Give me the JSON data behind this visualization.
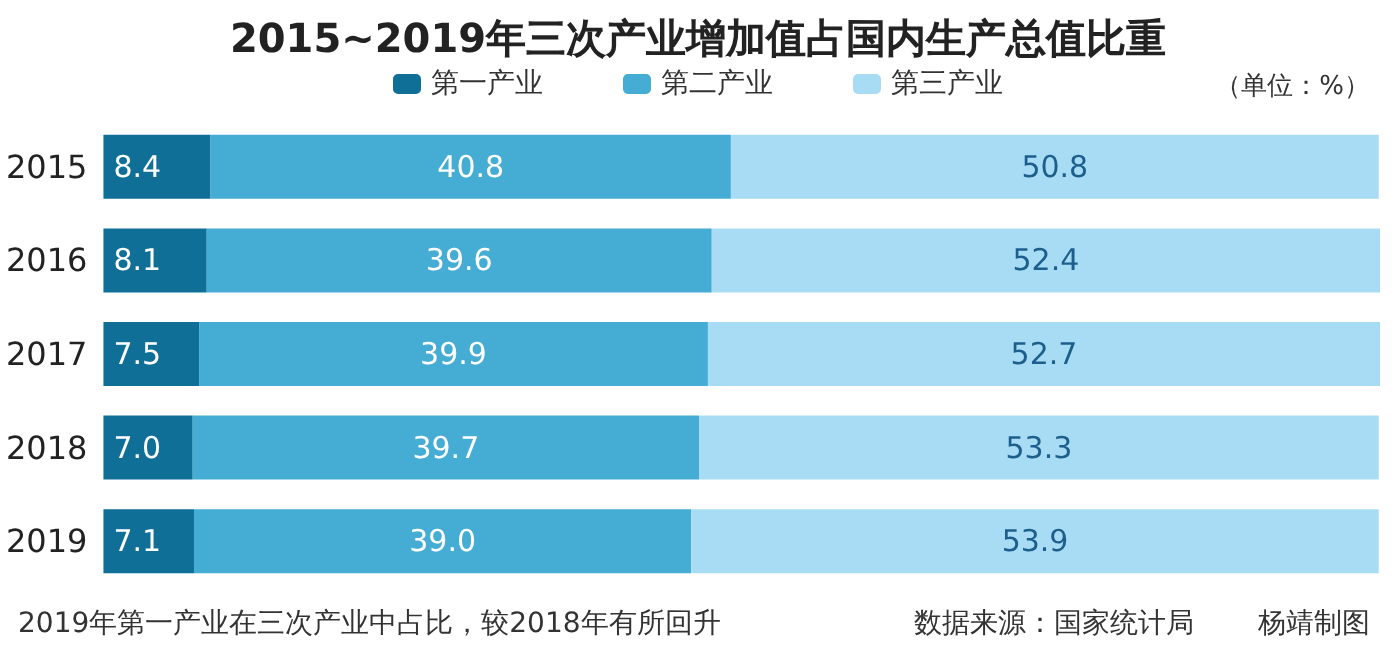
{
  "chart_data": {
    "type": "bar",
    "orientation": "horizontal",
    "stacked": true,
    "title": "2015~2019年三次产业增加值占国内生产总值比重",
    "categories": [
      "2015",
      "2016",
      "2017",
      "2018",
      "2019"
    ],
    "series": [
      {
        "name": "第一产业",
        "color": "#0f6f97",
        "values": [
          8.4,
          8.1,
          7.5,
          7.0,
          7.1
        ],
        "value_labels": [
          "8.4",
          "8.1",
          "7.5",
          "7.0",
          "7.1"
        ]
      },
      {
        "name": "第二产业",
        "color": "#45acd4",
        "values": [
          40.8,
          39.6,
          39.9,
          39.7,
          39.0
        ],
        "value_labels": [
          "40.8",
          "39.6",
          "39.9",
          "39.7",
          "39.0"
        ]
      },
      {
        "name": "第三产业",
        "color": "#a8dcf4",
        "values": [
          50.8,
          52.4,
          52.7,
          53.3,
          53.9
        ],
        "value_labels": [
          "50.8",
          "52.4",
          "52.7",
          "53.3",
          "53.9"
        ]
      }
    ],
    "legend": "top",
    "tick_labels": "y",
    "annotations": [
      "（单位：%）",
      "2019年第一产业在三次产业中占比，较2018年有所回升",
      "数据来源：国家统计局",
      "杨靖制图"
    ]
  }
}
